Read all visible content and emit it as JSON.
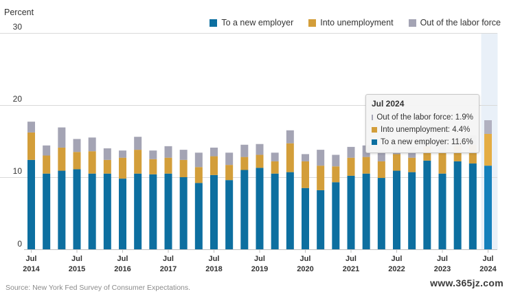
{
  "chart_data": {
    "type": "bar",
    "stacked": true,
    "ylabel": "Percent",
    "ylim": [
      0,
      30
    ],
    "yticks": [
      0,
      10,
      20,
      30
    ],
    "grid": true,
    "legend_position": "top-right",
    "series": [
      {
        "name": "To a new employer",
        "color": "#0d6fa0",
        "values": [
          12.4,
          10.5,
          10.9,
          11.1,
          10.5,
          10.5,
          9.8,
          10.5,
          10.4,
          10.5,
          10.0,
          9.2,
          10.3,
          9.6,
          11.0,
          11.3,
          10.5,
          10.7,
          8.5,
          8.2,
          9.3,
          10.2,
          10.5,
          9.9,
          10.9,
          10.7,
          12.3,
          10.5,
          12.2,
          11.9,
          11.6
        ]
      },
      {
        "name": "Into unemployment",
        "color": "#d39e3a",
        "values": [
          3.8,
          2.5,
          3.2,
          2.4,
          3.1,
          1.9,
          2.9,
          3.3,
          2.1,
          2.2,
          2.4,
          2.2,
          2.6,
          2.1,
          1.8,
          1.8,
          1.7,
          4.0,
          3.7,
          3.4,
          2.2,
          2.5,
          2.3,
          2.3,
          2.3,
          2.0,
          2.0,
          3.1,
          2.2,
          2.6,
          4.4
        ]
      },
      {
        "name": "Out of the labor force",
        "color": "#a4a4b4",
        "values": [
          1.5,
          1.4,
          2.8,
          1.8,
          1.9,
          1.6,
          1.0,
          1.8,
          1.2,
          1.6,
          1.4,
          2.0,
          1.2,
          1.7,
          1.7,
          1.5,
          1.2,
          1.8,
          1.0,
          2.2,
          1.6,
          1.5,
          1.6,
          1.5,
          1.3,
          1.5,
          1.1,
          1.3,
          1.1,
          1.3,
          1.9
        ]
      }
    ],
    "xtick_labels": [
      {
        "index": 0,
        "month": "Jul",
        "year": "2014"
      },
      {
        "index": 3,
        "month": "Jul",
        "year": "2015"
      },
      {
        "index": 6,
        "month": "Jul",
        "year": "2016"
      },
      {
        "index": 9,
        "month": "Jul",
        "year": "2017"
      },
      {
        "index": 12,
        "month": "Jul",
        "year": "2018"
      },
      {
        "index": 15,
        "month": "Jul",
        "year": "2019"
      },
      {
        "index": 18,
        "month": "Jul",
        "year": "2020"
      },
      {
        "index": 21,
        "month": "Jul",
        "year": "2021"
      },
      {
        "index": 24,
        "month": "Jul",
        "year": "2022"
      },
      {
        "index": 27,
        "month": "Jul",
        "year": "2023"
      },
      {
        "index": 30,
        "month": "Jul",
        "year": "2024"
      }
    ],
    "highlight_index": 30
  },
  "tooltip": {
    "title": "Jul 2024",
    "rows": [
      {
        "label": "Out of the labor force: 1.9%",
        "color": "#a4a4b4"
      },
      {
        "label": "Into unemployment: 4.4%",
        "color": "#d39e3a"
      },
      {
        "label": "To a new employer: 11.6%",
        "color": "#0d6fa0"
      }
    ]
  },
  "source": "Source: New York Fed Survey of Consumer Expectations.",
  "watermark": "www.365jz.com"
}
